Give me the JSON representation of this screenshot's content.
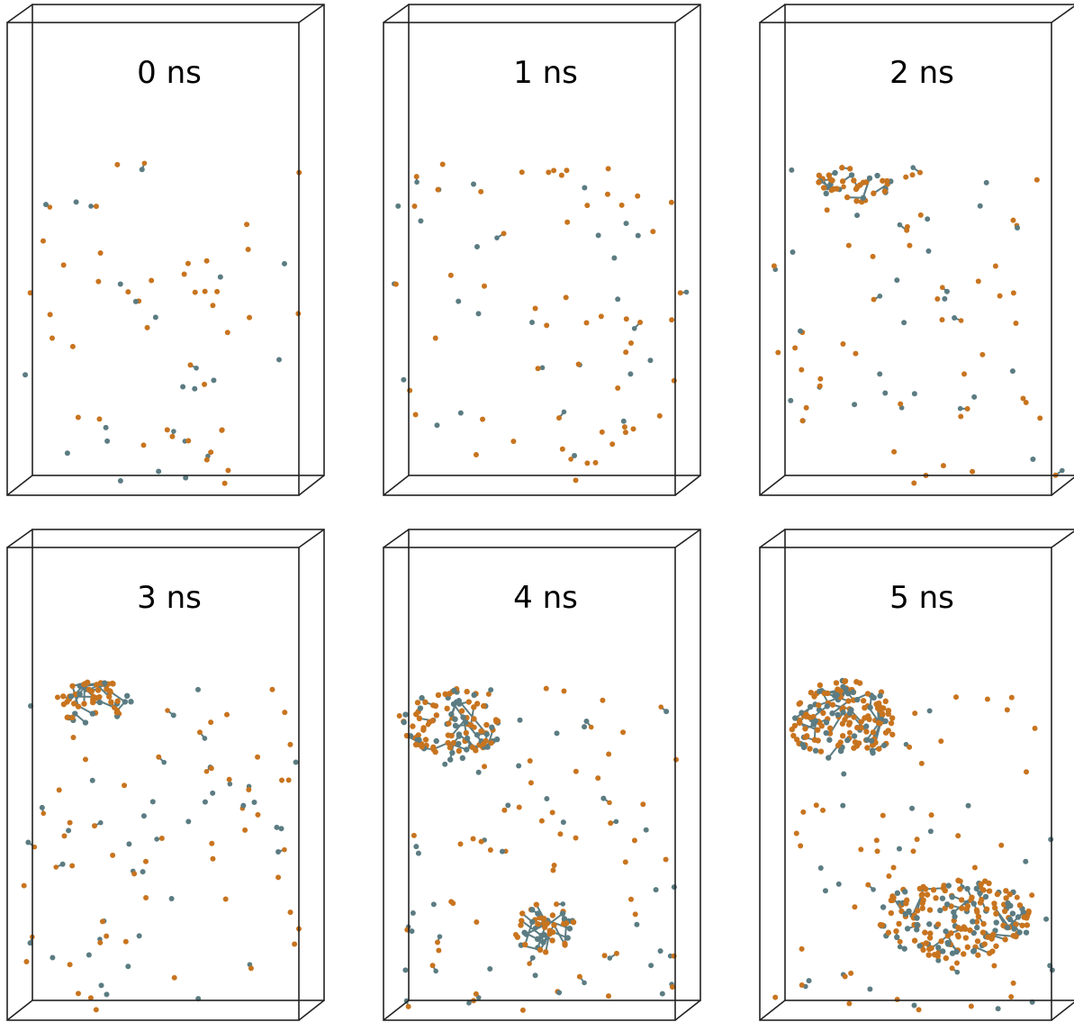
{
  "panels": [
    {
      "label": "0 ns"
    },
    {
      "label": "1 ns"
    },
    {
      "label": "2 ns"
    },
    {
      "label": "3 ns"
    },
    {
      "label": "4 ns"
    },
    {
      "label": "5 ns"
    }
  ]
}
